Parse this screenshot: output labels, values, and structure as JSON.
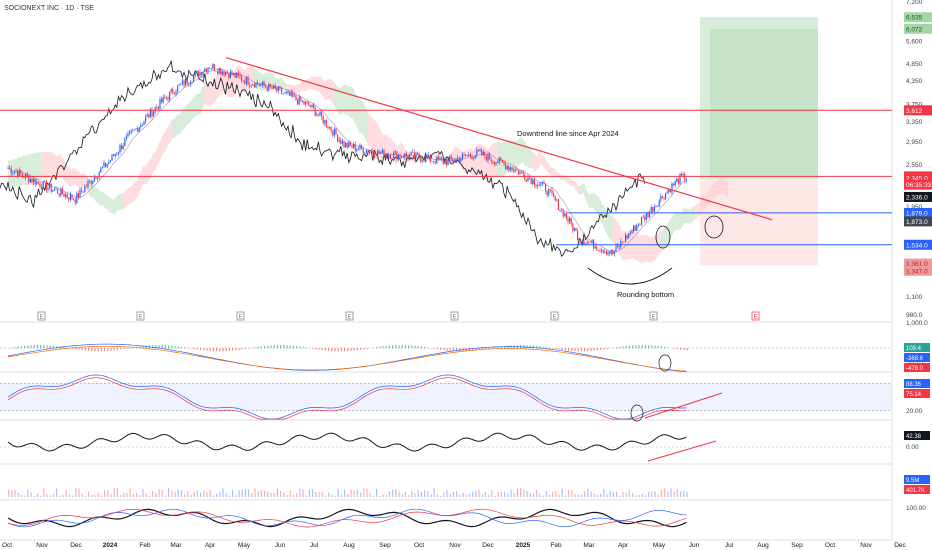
{
  "title": "SOCIONEXT INC · 1D · TSE",
  "colors": {
    "up": "#2962ff",
    "down": "#f23645",
    "trendline": "#f23645",
    "resistance": "#f23645",
    "support": "#2962ff",
    "cloud_bull": "#c8e6c9",
    "cloud_bear": "#ffcdd2",
    "lagging": "#131722",
    "tenkan": "#7e57c2",
    "profit_zone": "#4caf50",
    "loss_zone": "#f44336"
  },
  "annotations": {
    "trend": "Downtrend line since Apr 2024",
    "bottom": "Rounding bottom"
  },
  "earnings_marker": "E",
  "price_badges": [
    {
      "label": "6,535",
      "bg": "#a5d6a7",
      "fg": "#1b5e20",
      "y": 6535
    },
    {
      "label": "6,072",
      "bg": "#a5d6a7",
      "fg": "#1b5e20",
      "y": 6072
    },
    {
      "label": "3,612",
      "bg": "#f23645",
      "fg": "#ffffff",
      "y": 3612
    },
    {
      "label": "2,371.5",
      "bg": "#f23645",
      "fg": "#ffffff",
      "y": 2371.5
    },
    {
      "label": "2,345.0",
      "bg": "#f23645",
      "fg": "#ffffff",
      "y": 2345
    },
    {
      "label": "06:35:33",
      "bg": "#f23645",
      "fg": "#ffffff",
      "y": 2250
    },
    {
      "label": "2,336.0",
      "bg": "#131722",
      "fg": "#ffffff",
      "y": 2080
    },
    {
      "label": "1,879.0",
      "bg": "#2962ff",
      "fg": "#ffffff",
      "y": 1879
    },
    {
      "label": "1,873.0",
      "bg": "#434651",
      "fg": "#ffffff",
      "y": 1780
    },
    {
      "label": "1,534.0",
      "bg": "#2962ff",
      "fg": "#ffffff",
      "y": 1534
    },
    {
      "label": "1,361.0",
      "bg": "#ef9a9a",
      "fg": "#b71c1c",
      "y": 1361
    },
    {
      "label": "1,347.0",
      "bg": "#ef9a9a",
      "fg": "#b71c1c",
      "y": 1300
    }
  ],
  "sub_badges": {
    "macd": [
      {
        "label": "109.4",
        "bg": "#26a69a"
      },
      {
        "label": "-368.6",
        "bg": "#2962ff"
      },
      {
        "label": "-478.0",
        "bg": "#f23645"
      }
    ],
    "stoch": [
      {
        "label": "88.36",
        "bg": "#2962ff"
      },
      {
        "label": "75.14",
        "bg": "#f23645"
      }
    ],
    "rsi": [
      {
        "label": "42.38",
        "bg": "#131722"
      }
    ],
    "vol": [
      {
        "label": "9.5M",
        "bg": "#2962ff"
      },
      {
        "label": "401.7K",
        "bg": "#f23645"
      }
    ]
  },
  "chart_data": {
    "type": "line",
    "title": "SOCIONEXT INC · 1D · TSE",
    "y_scale": "log",
    "ylim": [
      950,
      7200
    ],
    "y_ticks": [
      "7,200",
      "5,600",
      "4,850",
      "4,350",
      "3,750",
      "3,350",
      "2,950",
      "2,550",
      "1,950",
      "1,100",
      "980.0"
    ],
    "y_tick_values": [
      7200,
      5600,
      4850,
      4350,
      3750,
      3350,
      2950,
      2550,
      1950,
      1100,
      980
    ],
    "x_ticks": [
      "Oct",
      "Nov",
      "Dec",
      "2024",
      "Feb",
      "Mar",
      "Apr",
      "May",
      "Jun",
      "Jul",
      "Aug",
      "Sep",
      "Oct",
      "Nov",
      "Dec",
      "2025",
      "Feb",
      "Mar",
      "Apr",
      "May",
      "Jun",
      "Jul",
      "Aug",
      "Sep",
      "Oct",
      "Nov",
      "Dec"
    ],
    "series": [
      {
        "x": [
          "2023-10",
          "2023-11",
          "2023-12",
          "2024-01",
          "2024-02",
          "2024-03",
          "2024-04",
          "2024-05",
          "2024-06",
          "2024-07",
          "2024-08",
          "2024-09",
          "2024-10",
          "2024-11",
          "2024-12",
          "2025-01",
          "2025-02",
          "2025-03",
          "2025-04",
          "2025-05",
          "2025-06"
        ],
        "values": [
          2500,
          2250,
          2050,
          2600,
          3350,
          4150,
          4800,
          4400,
          4100,
          3700,
          2900,
          2750,
          2700,
          2600,
          2750,
          2500,
          2200,
          1600,
          1450,
          1850,
          2345
        ]
      }
    ],
    "horizontal_lines": [
      3612,
      2371.5,
      1879,
      1534
    ],
    "trendline": {
      "from": [
        "2024-04",
        5050
      ],
      "to": [
        "2025-07",
        1800
      ]
    },
    "profit_zone": [
      2336,
      6535
    ],
    "loss_zone": [
      1347,
      2336
    ],
    "macd": {
      "ylim": [
        -960,
        1000
      ],
      "y_ticks": [
        "1,000.0",
        "0.00",
        "-500.0"
      ],
      "y_tick_values": [
        1000,
        0,
        -500
      ],
      "values": [
        109.4,
        -368.6,
        -478.0
      ]
    },
    "stochastic": {
      "ylim": [
        0,
        100
      ],
      "y_ticks": [
        "80.00",
        "20.00"
      ],
      "y_tick_values": [
        80,
        20
      ],
      "values": [
        88.36,
        75.14
      ]
    },
    "rsi": {
      "ylim": [
        0,
        100
      ],
      "y_ticks": [
        "0.00"
      ],
      "y_tick_values": [
        0
      ],
      "value": 42.38
    },
    "volume": {
      "ylim": [
        0,
        100
      ],
      "y_ticks": [
        "100.00"
      ],
      "y_tick_values": [
        100
      ],
      "values": [
        "9.5M",
        "401.7K"
      ]
    }
  }
}
